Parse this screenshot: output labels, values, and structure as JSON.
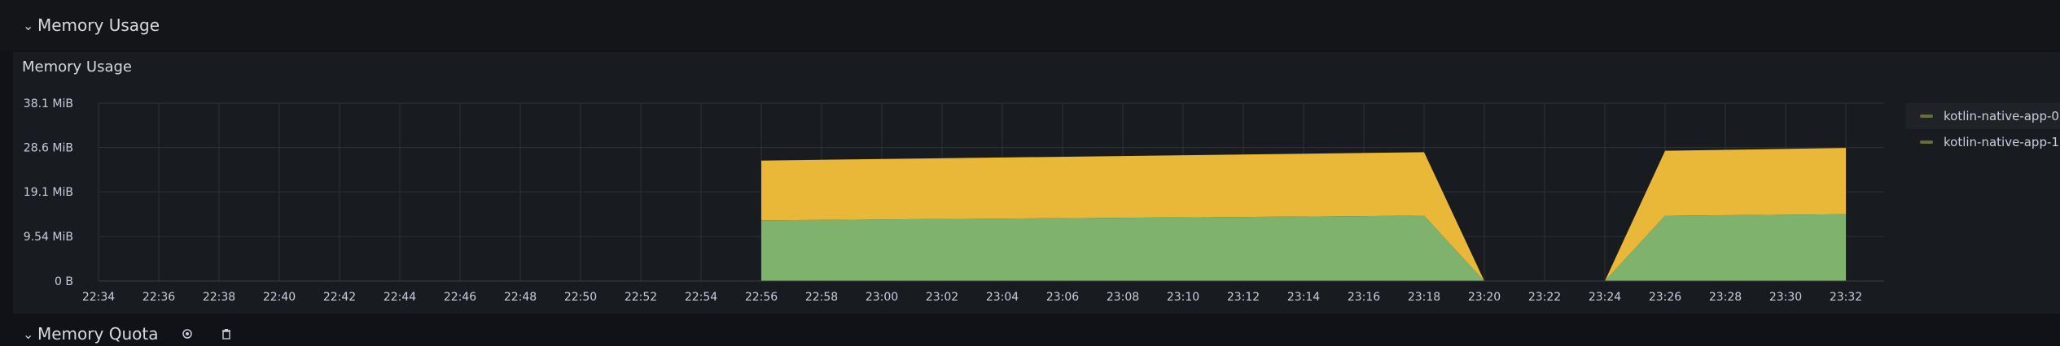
{
  "rows": [
    {
      "title": "Memory Usage",
      "collapsed": false
    },
    {
      "title": "Memory Quota",
      "collapsed": false
    }
  ],
  "panel": {
    "title": "Memory Usage"
  },
  "colors": {
    "app0": "#7eb26d",
    "app1": "#eab839"
  },
  "chart_data": {
    "type": "area",
    "stacked": true,
    "title": "Memory Usage",
    "xlabel": "",
    "ylabel": "",
    "ylim": [
      0,
      38.1
    ],
    "y_unit": "MiB",
    "y_ticks": [
      "0 B",
      "9.54 MiB",
      "19.1 MiB",
      "28.6 MiB",
      "38.1 MiB"
    ],
    "y_tick_values": [
      0,
      9.54,
      19.1,
      28.6,
      38.1
    ],
    "x_ticks": [
      "22:34",
      "22:36",
      "22:38",
      "22:40",
      "22:42",
      "22:44",
      "22:46",
      "22:48",
      "22:50",
      "22:52",
      "22:54",
      "22:56",
      "22:58",
      "23:00",
      "23:02",
      "23:04",
      "23:06",
      "23:08",
      "23:10",
      "23:12",
      "23:14",
      "23:16",
      "23:18",
      "23:20",
      "23:22",
      "23:24",
      "23:26",
      "23:28",
      "23:30",
      "23:32"
    ],
    "x_range": [
      "22:34",
      "23:33"
    ],
    "grid": true,
    "legend_position": "right",
    "series": [
      {
        "name": "kotlin-native-app-0",
        "color": "#7eb26d",
        "points": [
          {
            "x": "22:56",
            "y": 13.0
          },
          {
            "x": "23:18",
            "y": 14.0
          },
          {
            "x": "23:20",
            "y": 0
          },
          {
            "x": "23:24",
            "y": 0
          },
          {
            "x": "23:26",
            "y": 14.0
          },
          {
            "x": "23:32",
            "y": 14.3
          }
        ]
      },
      {
        "name": "kotlin-native-app-1",
        "color": "#eab839",
        "points": [
          {
            "x": "22:56",
            "y": 12.8
          },
          {
            "x": "23:18",
            "y": 13.6
          },
          {
            "x": "23:20",
            "y": 0
          },
          {
            "x": "23:24",
            "y": 0
          },
          {
            "x": "23:26",
            "y": 13.9
          },
          {
            "x": "23:32",
            "y": 14.2
          }
        ]
      }
    ]
  }
}
